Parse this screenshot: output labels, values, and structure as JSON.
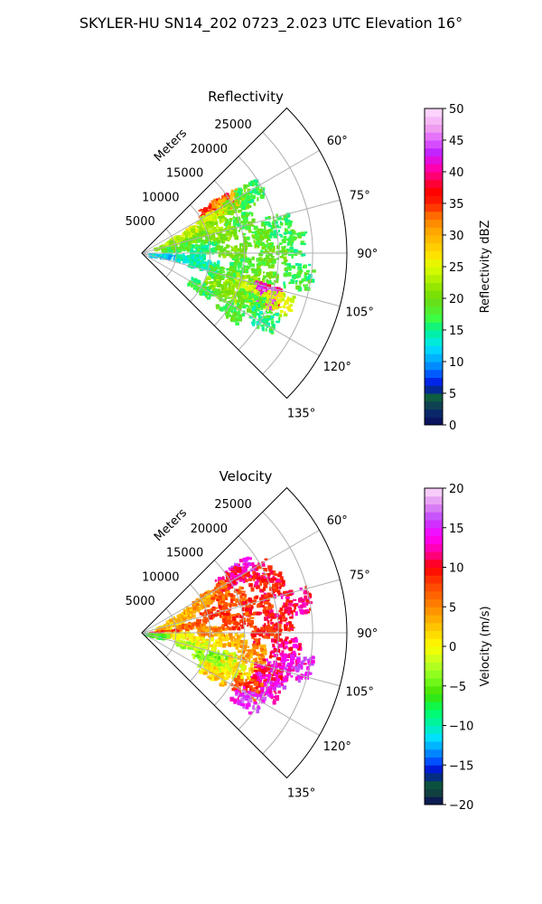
{
  "figure": {
    "suptitle": "SKYLER-HU  SN14_202  0723_2.023 UTC Elevation 16°"
  },
  "chart_data": [
    {
      "type": "heatmap",
      "projection": "polar-sector",
      "title": "Reflectivity",
      "range_label": "Meters",
      "range_ticks": [
        5000,
        10000,
        15000,
        20000,
        25000
      ],
      "range_max": 30000,
      "azimuth_range_deg": [
        45,
        135
      ],
      "azimuth_ticks": [
        "60°",
        "75°",
        "90°",
        "105°",
        "120°",
        "135°"
      ],
      "azimuth_tick_values": [
        60,
        75,
        90,
        105,
        120,
        135
      ],
      "grid": true,
      "colorbar": {
        "label": "Reflectivity dBZ",
        "min": 0,
        "max": 50,
        "ticks": [
          0,
          5,
          10,
          15,
          20,
          25,
          30,
          35,
          40,
          45,
          50
        ]
      },
      "cells": [
        {
          "az": 58,
          "r": 13000,
          "v": 36
        },
        {
          "az": 57,
          "r": 12000,
          "v": 34
        },
        {
          "az": 59,
          "r": 14500,
          "v": 30
        },
        {
          "az": 62,
          "r": 12000,
          "v": 24
        },
        {
          "az": 62,
          "r": 16000,
          "v": 20
        },
        {
          "az": 60,
          "r": 18000,
          "v": 17
        },
        {
          "az": 64,
          "r": 9000,
          "v": 25
        },
        {
          "az": 66,
          "r": 6000,
          "v": 24
        },
        {
          "az": 68,
          "r": 11000,
          "v": 22
        },
        {
          "az": 70,
          "r": 4000,
          "v": 22
        },
        {
          "az": 72,
          "r": 15000,
          "v": 18
        },
        {
          "az": 74,
          "r": 8000,
          "v": 20
        },
        {
          "az": 76,
          "r": 12000,
          "v": 21
        },
        {
          "az": 78,
          "r": 20000,
          "v": 17
        },
        {
          "az": 80,
          "r": 5000,
          "v": 18
        },
        {
          "az": 82,
          "r": 17000,
          "v": 19
        },
        {
          "az": 84,
          "r": 9000,
          "v": 16
        },
        {
          "az": 86,
          "r": 22000,
          "v": 17
        },
        {
          "az": 88,
          "r": 13000,
          "v": 20
        },
        {
          "az": 91,
          "r": 19000,
          "v": 19
        },
        {
          "az": 94,
          "r": 3000,
          "v": 12
        },
        {
          "az": 95,
          "r": 7000,
          "v": 14
        },
        {
          "az": 96,
          "r": 15000,
          "v": 18
        },
        {
          "az": 98,
          "r": 23000,
          "v": 17
        },
        {
          "az": 100,
          "r": 9000,
          "v": 14
        },
        {
          "az": 102,
          "r": 18000,
          "v": 19
        },
        {
          "az": 104,
          "r": 12000,
          "v": 18
        },
        {
          "az": 106,
          "r": 16000,
          "v": 22
        },
        {
          "az": 108,
          "r": 19000,
          "v": 40
        },
        {
          "az": 109,
          "r": 18800,
          "v": 44
        },
        {
          "az": 110,
          "r": 17000,
          "v": 24
        },
        {
          "az": 110,
          "r": 21000,
          "v": 25
        },
        {
          "az": 112,
          "r": 12000,
          "v": 22
        },
        {
          "az": 114,
          "r": 17000,
          "v": 18
        },
        {
          "az": 116,
          "r": 14000,
          "v": 21
        },
        {
          "az": 118,
          "r": 20000,
          "v": 16
        },
        {
          "az": 120,
          "r": 10000,
          "v": 17
        },
        {
          "az": 122,
          "r": 15000,
          "v": 18
        }
      ]
    },
    {
      "type": "heatmap",
      "projection": "polar-sector",
      "title": "Velocity",
      "range_label": "Meters",
      "range_ticks": [
        5000,
        10000,
        15000,
        20000,
        25000
      ],
      "range_max": 30000,
      "azimuth_range_deg": [
        45,
        135
      ],
      "azimuth_ticks": [
        "60°",
        "75°",
        "90°",
        "105°",
        "120°",
        "135°"
      ],
      "azimuth_tick_values": [
        60,
        75,
        90,
        105,
        120,
        135
      ],
      "grid": true,
      "colorbar": {
        "label": "Velocity (m/s)",
        "min": -20,
        "max": 20,
        "ticks": [
          -20,
          -15,
          -10,
          -5,
          0,
          5,
          10,
          15,
          20
        ]
      },
      "cells": [
        {
          "az": 57,
          "r": 17000,
          "v": 14
        },
        {
          "az": 58,
          "r": 15000,
          "v": 11
        },
        {
          "az": 60,
          "r": 12000,
          "v": 6
        },
        {
          "az": 62,
          "r": 9000,
          "v": 4
        },
        {
          "az": 63,
          "r": 19000,
          "v": 10
        },
        {
          "az": 66,
          "r": 6000,
          "v": 3
        },
        {
          "az": 68,
          "r": 14000,
          "v": 7
        },
        {
          "az": 70,
          "r": 20000,
          "v": 10
        },
        {
          "az": 72,
          "r": 4000,
          "v": 2
        },
        {
          "az": 74,
          "r": 11000,
          "v": 8
        },
        {
          "az": 76,
          "r": 17000,
          "v": 9
        },
        {
          "az": 78,
          "r": 23000,
          "v": 11
        },
        {
          "az": 80,
          "r": 7000,
          "v": 6
        },
        {
          "az": 82,
          "r": 14000,
          "v": 8
        },
        {
          "az": 84,
          "r": 20000,
          "v": 10
        },
        {
          "az": 86,
          "r": 3000,
          "v": 9
        },
        {
          "az": 88,
          "r": 10000,
          "v": 5
        },
        {
          "az": 90,
          "r": 18000,
          "v": 9
        },
        {
          "az": 92,
          "r": 5000,
          "v": 1
        },
        {
          "az": 94,
          "r": 13000,
          "v": 3
        },
        {
          "az": 96,
          "r": 21000,
          "v": 12
        },
        {
          "az": 98,
          "r": 9000,
          "v": 0
        },
        {
          "az": 100,
          "r": 16000,
          "v": 4
        },
        {
          "az": 102,
          "r": 23000,
          "v": 14
        },
        {
          "az": 104,
          "r": 7000,
          "v": -2
        },
        {
          "az": 106,
          "r": 12000,
          "v": -3
        },
        {
          "az": 106,
          "r": 20000,
          "v": 13
        },
        {
          "az": 108,
          "r": 15000,
          "v": 2
        },
        {
          "az": 109,
          "r": 19000,
          "v": 11
        },
        {
          "az": 110,
          "r": 10000,
          "v": -4
        },
        {
          "az": 112,
          "r": 14000,
          "v": 0
        },
        {
          "az": 113,
          "r": 20000,
          "v": 14
        },
        {
          "az": 115,
          "r": 11000,
          "v": -2
        },
        {
          "az": 117,
          "r": 17000,
          "v": 8
        },
        {
          "az": 119,
          "r": 12000,
          "v": 2
        },
        {
          "az": 122,
          "r": 18000,
          "v": 15
        },
        {
          "az": 96,
          "r": 1500,
          "v": -6
        }
      ]
    }
  ]
}
